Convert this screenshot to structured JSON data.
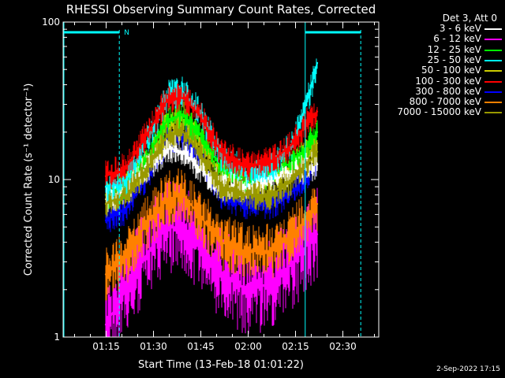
{
  "generated_label": "2-Sep-2022 17:15",
  "legend_header": "Det 3, Att 0",
  "colors": {
    "background": "#000000",
    "axes": "#ffffff",
    "marker": "#00ffff"
  },
  "chart_data": {
    "type": "line",
    "title": "RHESSI Observing Summary Count Rates, Corrected",
    "xlabel": "Start Time (13-Feb-18 01:01:22)",
    "ylabel": "Corrected Count Rate (s⁻¹ detector⁻¹)",
    "yscale": "log",
    "ylim": [
      1,
      100
    ],
    "xlim_minutes": [
      0,
      100
    ],
    "ytick_labels": [
      "1",
      "10",
      "100"
    ],
    "xtick_labels": [
      "01:15",
      "01:30",
      "01:45",
      "02:00",
      "02:15",
      "02:30"
    ],
    "xtick_minutes": [
      13.63,
      28.63,
      43.63,
      58.63,
      73.63,
      88.63
    ],
    "marker_lines_minutes": [
      17.8,
      76.7,
      94.3
    ],
    "night_label": "N",
    "series": [
      {
        "name": "3 - 6 keV",
        "color": "#ffffff",
        "values": [
          [
            13.5,
            7.5
          ],
          [
            20,
            8.5
          ],
          [
            27,
            12
          ],
          [
            33,
            16
          ],
          [
            38,
            15
          ],
          [
            43,
            12
          ],
          [
            50,
            9
          ],
          [
            58,
            9
          ],
          [
            66,
            10
          ],
          [
            73,
            11
          ],
          [
            78,
            12
          ],
          [
            80.5,
            12.5
          ]
        ]
      },
      {
        "name": "6 - 12 keV",
        "color": "#ff00ff",
        "values": [
          [
            13.5,
            1.2
          ],
          [
            20,
            2
          ],
          [
            27,
            3.5
          ],
          [
            33,
            5
          ],
          [
            38,
            5
          ],
          [
            43,
            4
          ],
          [
            50,
            2.5
          ],
          [
            58,
            2
          ],
          [
            66,
            2.2
          ],
          [
            73,
            3
          ],
          [
            78,
            4
          ],
          [
            80.5,
            4.5
          ]
        ]
      },
      {
        "name": "12 - 25 keV",
        "color": "#00ff00",
        "values": [
          [
            13.5,
            8
          ],
          [
            20,
            9
          ],
          [
            27,
            14
          ],
          [
            33,
            24
          ],
          [
            38,
            26
          ],
          [
            43,
            20
          ],
          [
            50,
            12
          ],
          [
            58,
            10
          ],
          [
            66,
            11
          ],
          [
            73,
            13
          ],
          [
            78,
            17
          ],
          [
            80.5,
            20
          ]
        ]
      },
      {
        "name": "25 - 50 keV",
        "color": "#00ffff",
        "values": [
          [
            13.5,
            9
          ],
          [
            20,
            10
          ],
          [
            27,
            18
          ],
          [
            33,
            34
          ],
          [
            38,
            36
          ],
          [
            43,
            27
          ],
          [
            50,
            14
          ],
          [
            58,
            11
          ],
          [
            66,
            12
          ],
          [
            73,
            17
          ],
          [
            78,
            35
          ],
          [
            80.5,
            55
          ]
        ]
      },
      {
        "name": "50 - 100 keV",
        "color": "#cccc00",
        "values": [
          [
            13.5,
            8
          ],
          [
            20,
            9
          ],
          [
            27,
            13
          ],
          [
            33,
            22
          ],
          [
            38,
            24
          ],
          [
            43,
            18
          ],
          [
            50,
            11
          ],
          [
            58,
            10
          ],
          [
            66,
            10
          ],
          [
            73,
            12
          ],
          [
            78,
            15
          ],
          [
            80.5,
            17
          ]
        ]
      },
      {
        "name": "100 - 300 keV",
        "color": "#ff0000",
        "values": [
          [
            13.5,
            10.5
          ],
          [
            20,
            12
          ],
          [
            27,
            20
          ],
          [
            33,
            32
          ],
          [
            38,
            33
          ],
          [
            43,
            26
          ],
          [
            50,
            15
          ],
          [
            58,
            12
          ],
          [
            66,
            13
          ],
          [
            73,
            17
          ],
          [
            78,
            24
          ],
          [
            80.5,
            27
          ]
        ]
      },
      {
        "name": "300 - 800 keV",
        "color": "#0000ff",
        "values": [
          [
            13.5,
            5.5
          ],
          [
            20,
            6.5
          ],
          [
            27,
            11
          ],
          [
            33,
            18
          ],
          [
            38,
            19
          ],
          [
            43,
            14
          ],
          [
            50,
            8
          ],
          [
            58,
            7
          ],
          [
            66,
            7
          ],
          [
            73,
            8.5
          ],
          [
            78,
            11
          ],
          [
            80.5,
            12.5
          ]
        ]
      },
      {
        "name": "800 - 7000 keV",
        "color": "#ff8000",
        "values": [
          [
            13.5,
            2.5
          ],
          [
            20,
            3.2
          ],
          [
            27,
            5.5
          ],
          [
            33,
            7.5
          ],
          [
            38,
            8
          ],
          [
            43,
            6
          ],
          [
            50,
            4
          ],
          [
            58,
            3.5
          ],
          [
            66,
            3.5
          ],
          [
            73,
            4.5
          ],
          [
            78,
            6
          ],
          [
            80.5,
            7
          ]
        ]
      },
      {
        "name": "7000 - 15000 keV",
        "color": "#999900",
        "values": [
          [
            13.5,
            7
          ],
          [
            20,
            8
          ],
          [
            27,
            12
          ],
          [
            33,
            19
          ],
          [
            38,
            20
          ],
          [
            43,
            15
          ],
          [
            50,
            9
          ],
          [
            58,
            8
          ],
          [
            66,
            8
          ],
          [
            73,
            10
          ],
          [
            78,
            13
          ],
          [
            80.5,
            15
          ]
        ]
      }
    ]
  }
}
